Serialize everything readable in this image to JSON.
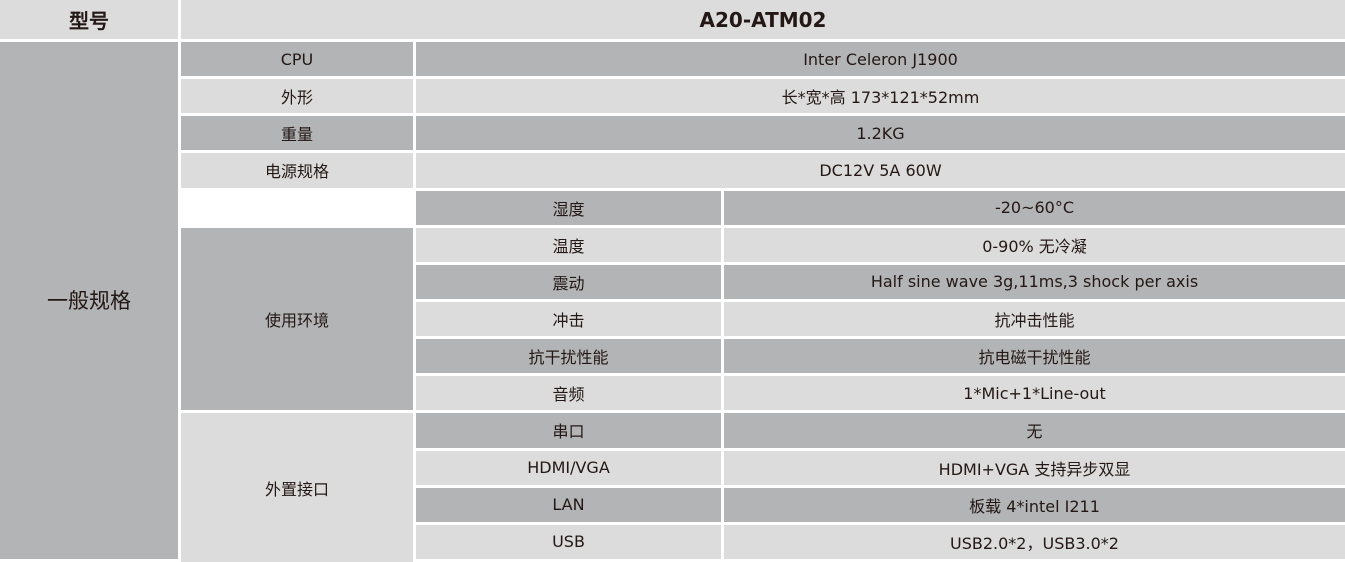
{
  "header": {
    "label": "型号",
    "model": "A20-ATM02"
  },
  "group_general": "一般规格",
  "basic": [
    {
      "name": "CPU",
      "value": "Inter Celeron J1900"
    },
    {
      "name": "外形",
      "value": "长*宽*高 173*121*52mm"
    },
    {
      "name": "重量",
      "value": "1.2KG"
    },
    {
      "name": "电源规格",
      "value": "DC12V 5A 60W"
    }
  ],
  "environment": {
    "label": "使用环境",
    "items": [
      {
        "name": "湿度",
        "value": "-20~60°C"
      },
      {
        "name": "温度",
        "value": "0-90% 无冷凝"
      },
      {
        "name": "震动",
        "value": "Half sine wave 3g,11ms,3 shock per axis"
      },
      {
        "name": "冲击",
        "value": "抗冲击性能"
      },
      {
        "name": "抗干扰性能",
        "value": "抗电磁干扰性能"
      }
    ]
  },
  "interfaces": {
    "label": "外置接口",
    "items": [
      {
        "name": "音频",
        "value": "1*Mic+1*Line-out"
      },
      {
        "name": "串口",
        "value": "无"
      },
      {
        "name": "HDMI/VGA",
        "value": "HDMI+VGA 支持异步双显"
      },
      {
        "name": "LAN",
        "value": "板载 4*intel I211"
      },
      {
        "name": "USB",
        "value": "USB2.0*2，USB3.0*2"
      }
    ]
  },
  "colors": {
    "dark": "#b3b4b6",
    "light": "#dcdcdc",
    "border": "#ffffff",
    "text": "#231815"
  }
}
